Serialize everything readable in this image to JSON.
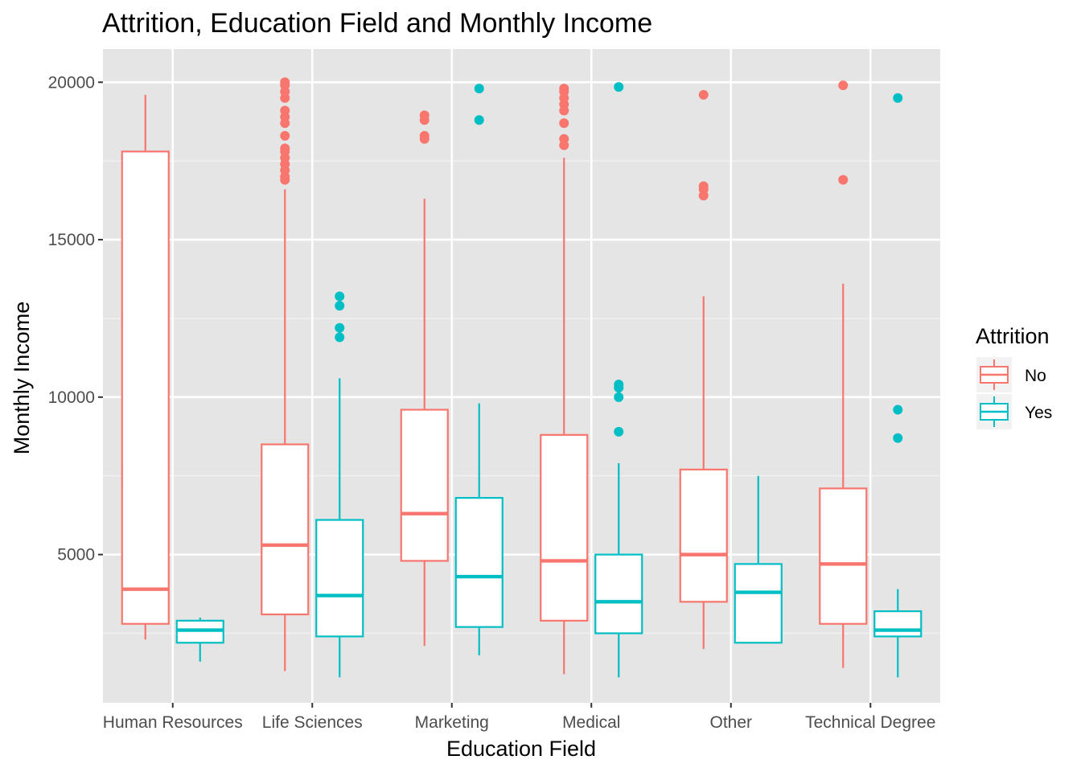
{
  "chart_data": {
    "type": "boxplot",
    "title": "Attrition, Education Field and Monthly Income",
    "xlabel": "Education Field",
    "ylabel": "Monthly Income",
    "categories": [
      "Human Resources",
      "Life Sciences",
      "Marketing",
      "Medical",
      "Other",
      "Technical Degree"
    ],
    "y_ticks": [
      "5000",
      "10000",
      "15000",
      "20000"
    ],
    "y_tick_values": [
      5000,
      10000,
      15000,
      20000
    ],
    "ylim": [
      291,
      21054
    ],
    "grid": true,
    "panel_background": "#e5e5e5",
    "legend": {
      "title": "Attrition",
      "position": "right",
      "entries": [
        "No",
        "Yes"
      ]
    },
    "series": [
      {
        "name": "No",
        "color": "#F8766D",
        "boxes": [
          {
            "category": "Human Resources",
            "min": 2300,
            "q1": 2800,
            "median": 3900,
            "q3": 17800,
            "max": 19600,
            "outliers": []
          },
          {
            "category": "Life Sciences",
            "min": 1300,
            "q1": 3100,
            "median": 5300,
            "q3": 8500,
            "max": 16600,
            "outliers": [
              16900,
              17000,
              17200,
              17400,
              17600,
              17800,
              17900,
              18300,
              18700,
              18900,
              19100,
              19500,
              19700,
              19900,
              20000
            ]
          },
          {
            "category": "Marketing",
            "min": 2100,
            "q1": 4800,
            "median": 6300,
            "q3": 9600,
            "max": 16300,
            "outliers": [
              18200,
              18300,
              18800,
              18950
            ]
          },
          {
            "category": "Medical",
            "min": 1200,
            "q1": 2900,
            "median": 4800,
            "q3": 8800,
            "max": 17600,
            "outliers": [
              18000,
              18200,
              18700,
              19100,
              19300,
              19500,
              19700,
              19800
            ]
          },
          {
            "category": "Other",
            "min": 2000,
            "q1": 3500,
            "median": 5000,
            "q3": 7700,
            "max": 13200,
            "outliers": [
              16400,
              16600,
              16700,
              19600
            ]
          },
          {
            "category": "Technical Degree",
            "min": 1400,
            "q1": 2800,
            "median": 4700,
            "q3": 7100,
            "max": 13600,
            "outliers": [
              16900,
              19900
            ]
          }
        ]
      },
      {
        "name": "Yes",
        "color": "#00BFC4",
        "boxes": [
          {
            "category": "Human Resources",
            "min": 1600,
            "q1": 2200,
            "median": 2600,
            "q3": 2900,
            "max": 3000,
            "outliers": []
          },
          {
            "category": "Life Sciences",
            "min": 1100,
            "q1": 2400,
            "median": 3700,
            "q3": 6100,
            "max": 10600,
            "outliers": [
              11900,
              12200,
              12900,
              13200
            ]
          },
          {
            "category": "Marketing",
            "min": 1800,
            "q1": 2700,
            "median": 4300,
            "q3": 6800,
            "max": 9800,
            "outliers": [
              18800,
              19800
            ]
          },
          {
            "category": "Medical",
            "min": 1100,
            "q1": 2500,
            "median": 3500,
            "q3": 5000,
            "max": 7900,
            "outliers": [
              8900,
              10000,
              10300,
              10400,
              19850
            ]
          },
          {
            "category": "Other",
            "min": 2200,
            "q1": 2200,
            "median": 3800,
            "q3": 4700,
            "max": 7500,
            "outliers": []
          },
          {
            "category": "Technical Degree",
            "min": 1100,
            "q1": 2400,
            "median": 2600,
            "q3": 3200,
            "max": 3900,
            "outliers": [
              8700,
              9600,
              19500
            ]
          }
        ]
      }
    ]
  }
}
